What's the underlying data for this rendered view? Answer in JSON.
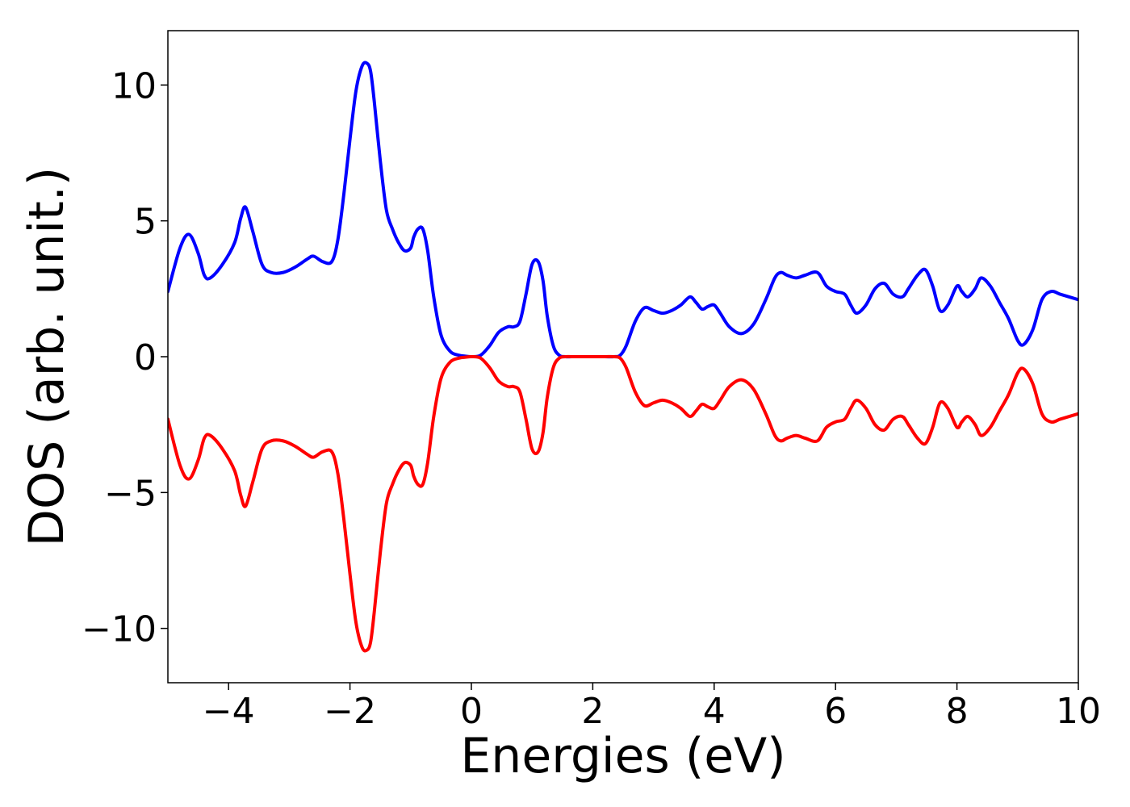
{
  "chart_data": {
    "type": "line",
    "title": "",
    "xlabel": "Energies (eV)",
    "ylabel": "DOS (arb. unit.)",
    "xlim": [
      -5,
      10
    ],
    "ylim": [
      -12,
      12
    ],
    "x_ticks": [
      -4,
      -2,
      0,
      2,
      4,
      6,
      8,
      10
    ],
    "y_ticks": [
      -10,
      -5,
      0,
      5,
      10
    ],
    "x_tick_labels": [
      "−4",
      "−2",
      "0",
      "2",
      "4",
      "6",
      "8",
      "10"
    ],
    "y_tick_labels": [
      "−10",
      "−5",
      "0",
      "5",
      "10"
    ],
    "grid": false,
    "legend": "none",
    "series": [
      {
        "color": "#0000ff",
        "x": [
          -5.0,
          -4.8,
          -4.65,
          -4.5,
          -4.4,
          -4.3,
          -4.1,
          -3.9,
          -3.8,
          -3.72,
          -3.6,
          -3.45,
          -3.3,
          -3.1,
          -2.9,
          -2.7,
          -2.6,
          -2.45,
          -2.3,
          -2.2,
          -2.1,
          -2.0,
          -1.9,
          -1.8,
          -1.72,
          -1.66,
          -1.6,
          -1.5,
          -1.4,
          -1.3,
          -1.2,
          -1.1,
          -1.0,
          -0.95,
          -0.88,
          -0.8,
          -0.72,
          -0.62,
          -0.5,
          -0.35,
          -0.2,
          -0.1,
          0.0,
          0.15,
          0.3,
          0.45,
          0.6,
          0.7,
          0.8,
          0.9,
          1.0,
          1.1,
          1.18,
          1.25,
          1.35,
          1.45,
          1.55,
          1.65,
          1.8,
          2.0,
          2.2,
          2.35,
          2.45,
          2.55,
          2.7,
          2.85,
          3.0,
          3.15,
          3.3,
          3.45,
          3.6,
          3.7,
          3.8,
          3.9,
          4.0,
          4.1,
          4.25,
          4.45,
          4.65,
          4.85,
          5.0,
          5.1,
          5.2,
          5.35,
          5.5,
          5.7,
          5.85,
          6.0,
          6.15,
          6.25,
          6.35,
          6.5,
          6.65,
          6.8,
          6.95,
          7.1,
          7.2,
          7.35,
          7.48,
          7.6,
          7.72,
          7.85,
          8.0,
          8.08,
          8.18,
          8.3,
          8.4,
          8.55,
          8.7,
          8.85,
          9.0,
          9.1,
          9.25,
          9.4,
          9.55,
          9.7,
          9.85,
          10.0
        ],
        "y": [
          2.4,
          4.0,
          4.5,
          3.8,
          3.0,
          2.9,
          3.4,
          4.2,
          5.1,
          5.5,
          4.6,
          3.4,
          3.1,
          3.1,
          3.3,
          3.6,
          3.7,
          3.5,
          3.5,
          4.3,
          6.0,
          8.0,
          9.8,
          10.7,
          10.8,
          10.5,
          9.4,
          7.2,
          5.4,
          4.7,
          4.2,
          3.9,
          4.0,
          4.4,
          4.7,
          4.7,
          3.9,
          2.2,
          0.8,
          0.2,
          0.05,
          0.02,
          0.0,
          0.05,
          0.4,
          0.9,
          1.1,
          1.1,
          1.3,
          2.3,
          3.4,
          3.5,
          2.8,
          1.5,
          0.4,
          0.05,
          0.0,
          0.0,
          0.0,
          0.0,
          0.0,
          0.0,
          0.05,
          0.4,
          1.3,
          1.8,
          1.7,
          1.6,
          1.7,
          1.9,
          2.2,
          2.0,
          1.75,
          1.85,
          1.9,
          1.6,
          1.1,
          0.85,
          1.2,
          2.1,
          2.9,
          3.1,
          3.0,
          2.9,
          3.0,
          3.1,
          2.6,
          2.4,
          2.3,
          1.9,
          1.6,
          1.9,
          2.5,
          2.7,
          2.3,
          2.2,
          2.5,
          3.0,
          3.2,
          2.6,
          1.7,
          1.9,
          2.6,
          2.4,
          2.2,
          2.5,
          2.9,
          2.6,
          2.0,
          1.4,
          0.6,
          0.45,
          1.0,
          2.1,
          2.4,
          2.3,
          2.2,
          2.1
        ]
      },
      {
        "color": "#ff0000",
        "x": [
          -5.0,
          -4.8,
          -4.65,
          -4.5,
          -4.4,
          -4.3,
          -4.1,
          -3.9,
          -3.8,
          -3.72,
          -3.6,
          -3.45,
          -3.3,
          -3.1,
          -2.9,
          -2.7,
          -2.6,
          -2.45,
          -2.3,
          -2.2,
          -2.1,
          -2.0,
          -1.9,
          -1.8,
          -1.72,
          -1.66,
          -1.6,
          -1.5,
          -1.4,
          -1.3,
          -1.2,
          -1.1,
          -1.0,
          -0.95,
          -0.88,
          -0.8,
          -0.72,
          -0.62,
          -0.5,
          -0.35,
          -0.2,
          -0.1,
          0.0,
          0.15,
          0.3,
          0.45,
          0.6,
          0.7,
          0.8,
          0.9,
          1.0,
          1.1,
          1.18,
          1.25,
          1.35,
          1.45,
          1.55,
          1.65,
          1.8,
          2.0,
          2.2,
          2.35,
          2.45,
          2.55,
          2.7,
          2.85,
          3.0,
          3.15,
          3.3,
          3.45,
          3.6,
          3.7,
          3.8,
          3.9,
          4.0,
          4.1,
          4.25,
          4.45,
          4.65,
          4.85,
          5.0,
          5.1,
          5.2,
          5.35,
          5.5,
          5.7,
          5.85,
          6.0,
          6.15,
          6.25,
          6.35,
          6.5,
          6.65,
          6.8,
          6.95,
          7.1,
          7.2,
          7.35,
          7.48,
          7.6,
          7.72,
          7.85,
          8.0,
          8.08,
          8.18,
          8.3,
          8.4,
          8.55,
          8.7,
          8.85,
          9.0,
          9.1,
          9.25,
          9.4,
          9.55,
          9.7,
          9.85,
          10.0
        ],
        "y": [
          -2.3,
          -4.0,
          -4.5,
          -3.8,
          -3.0,
          -2.9,
          -3.4,
          -4.2,
          -5.1,
          -5.5,
          -4.6,
          -3.4,
          -3.1,
          -3.1,
          -3.3,
          -3.6,
          -3.7,
          -3.5,
          -3.5,
          -4.3,
          -6.0,
          -8.0,
          -9.8,
          -10.7,
          -10.8,
          -10.5,
          -9.4,
          -7.2,
          -5.4,
          -4.7,
          -4.2,
          -3.9,
          -4.0,
          -4.4,
          -4.7,
          -4.7,
          -3.9,
          -2.2,
          -0.8,
          -0.2,
          -0.05,
          -0.02,
          0.0,
          -0.05,
          -0.4,
          -0.9,
          -1.1,
          -1.1,
          -1.3,
          -2.3,
          -3.4,
          -3.5,
          -2.8,
          -1.5,
          -0.4,
          -0.05,
          0.0,
          0.0,
          0.0,
          0.0,
          0.0,
          0.0,
          -0.05,
          -0.4,
          -1.3,
          -1.8,
          -1.7,
          -1.6,
          -1.7,
          -1.9,
          -2.2,
          -2.0,
          -1.75,
          -1.85,
          -1.9,
          -1.6,
          -1.1,
          -0.85,
          -1.2,
          -2.1,
          -2.9,
          -3.1,
          -3.0,
          -2.9,
          -3.0,
          -3.1,
          -2.6,
          -2.4,
          -2.3,
          -1.9,
          -1.6,
          -1.9,
          -2.5,
          -2.7,
          -2.3,
          -2.2,
          -2.5,
          -3.0,
          -3.2,
          -2.6,
          -1.7,
          -1.9,
          -2.6,
          -2.4,
          -2.2,
          -2.5,
          -2.9,
          -2.6,
          -2.0,
          -1.4,
          -0.6,
          -0.45,
          -1.0,
          -2.1,
          -2.4,
          -2.3,
          -2.2,
          -2.1
        ]
      }
    ]
  }
}
